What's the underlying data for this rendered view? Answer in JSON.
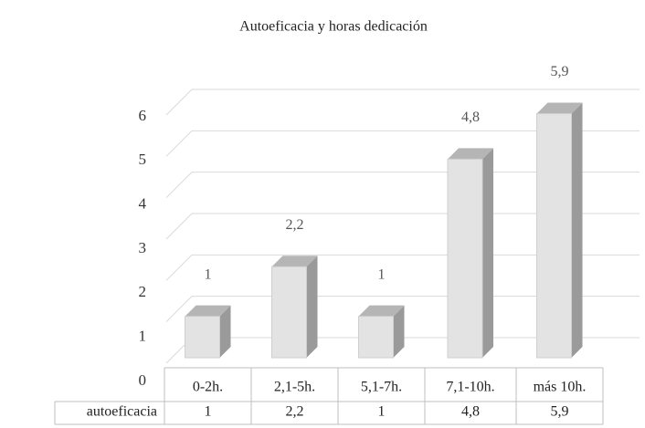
{
  "chart_data": {
    "type": "bar3d",
    "title": "Autoeficacia y horas dedicación",
    "categories": [
      "0-2h.",
      "2,1-5h.",
      "5,1-7h.",
      "7,1-10h.",
      "más 10h."
    ],
    "series": [
      {
        "name": "autoeficacia",
        "color": "#e3e3e3",
        "values": [
          1,
          2.2,
          1,
          4.8,
          5.9
        ],
        "value_labels": [
          "1",
          "2,2",
          "1",
          "4,8",
          "5,9"
        ]
      }
    ],
    "ylim": [
      0,
      6
    ],
    "yticks": [
      0,
      1,
      2,
      3,
      4,
      5,
      6
    ],
    "grid": true,
    "data_table": true
  }
}
